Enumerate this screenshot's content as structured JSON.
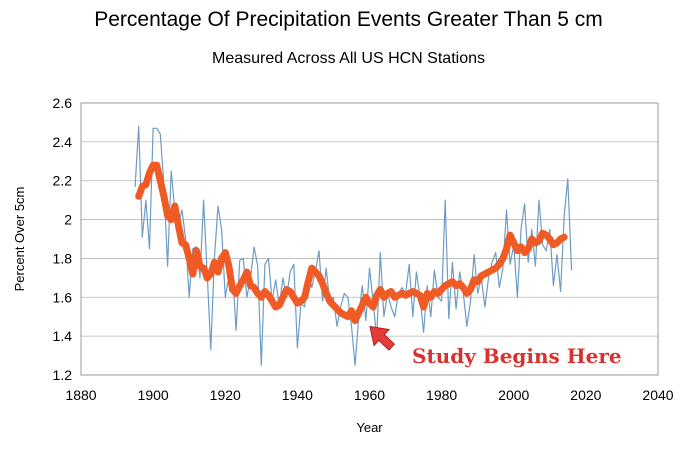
{
  "chart_data": {
    "type": "line",
    "title": "Percentage Of Precipitation Events Greater Than 5 cm",
    "subtitle": "Measured Across All US HCN Stations",
    "xlabel": "Year",
    "ylabel": "Percent Over 5cm",
    "xlim": [
      1880,
      2040
    ],
    "ylim": [
      1.2,
      2.6
    ],
    "xticks": [
      "1880",
      "1900",
      "1920",
      "1940",
      "1960",
      "1980",
      "2000",
      "2020",
      "2040"
    ],
    "yticks": [
      "1.2",
      "1.4",
      "1.6",
      "1.8",
      "2",
      "2.2",
      "2.4",
      "2.6"
    ],
    "grid": "horizontal",
    "series": [
      {
        "color": "#6e9cc4",
        "style": "thin",
        "x": [
          1895,
          1896,
          1897,
          1898,
          1899,
          1900,
          1901,
          1902,
          1903,
          1904,
          1905,
          1906,
          1907,
          1908,
          1909,
          1910,
          1911,
          1912,
          1913,
          1914,
          1915,
          1916,
          1917,
          1918,
          1919,
          1920,
          1921,
          1922,
          1923,
          1924,
          1925,
          1926,
          1927,
          1928,
          1929,
          1930,
          1931,
          1932,
          1933,
          1934,
          1935,
          1936,
          1937,
          1938,
          1939,
          1940,
          1941,
          1942,
          1943,
          1944,
          1945,
          1946,
          1947,
          1948,
          1949,
          1950,
          1951,
          1952,
          1953,
          1954,
          1955,
          1956,
          1957,
          1958,
          1959,
          1960,
          1961,
          1962,
          1963,
          1964,
          1965,
          1966,
          1967,
          1968,
          1969,
          1970,
          1971,
          1972,
          1973,
          1974,
          1975,
          1976,
          1977,
          1978,
          1979,
          1980,
          1981,
          1982,
          1983,
          1984,
          1985,
          1986,
          1987,
          1988,
          1989,
          1990,
          1991,
          1992,
          1993,
          1994,
          1995,
          1996,
          1997,
          1998,
          1999,
          2000,
          2001,
          2002,
          2003,
          2004,
          2005,
          2006,
          2007,
          2008,
          2009,
          2010,
          2011,
          2012,
          2013,
          2014,
          2015,
          2016
        ],
        "values": [
          2.17,
          2.48,
          1.91,
          2.1,
          1.85,
          2.47,
          2.47,
          2.44,
          2.18,
          1.76,
          2.25,
          2.05,
          1.97,
          2.05,
          1.9,
          1.6,
          1.85,
          1.86,
          1.7,
          2.1,
          1.72,
          1.33,
          1.8,
          2.07,
          1.95,
          1.6,
          1.71,
          1.73,
          1.43,
          1.79,
          1.8,
          1.6,
          1.7,
          1.86,
          1.76,
          1.25,
          1.77,
          1.8,
          1.58,
          1.69,
          1.55,
          1.7,
          1.6,
          1.73,
          1.77,
          1.34,
          1.57,
          1.55,
          1.74,
          1.65,
          1.73,
          1.84,
          1.58,
          1.75,
          1.57,
          1.6,
          1.45,
          1.55,
          1.62,
          1.6,
          1.45,
          1.25,
          1.5,
          1.66,
          1.48,
          1.75,
          1.58,
          1.39,
          1.83,
          1.5,
          1.62,
          1.55,
          1.5,
          1.62,
          1.65,
          1.62,
          1.77,
          1.5,
          1.73,
          1.6,
          1.42,
          1.66,
          1.5,
          1.74,
          1.6,
          1.58,
          2.1,
          1.49,
          1.78,
          1.54,
          1.73,
          1.62,
          1.45,
          1.58,
          1.82,
          1.62,
          1.7,
          1.55,
          1.7,
          1.78,
          1.83,
          1.65,
          1.75,
          2.05,
          1.77,
          1.87,
          1.6,
          1.95,
          2.08,
          1.78,
          1.95,
          1.76,
          2.1,
          1.87,
          1.84,
          1.95,
          1.66,
          1.82,
          1.63,
          2.02,
          2.21,
          1.74
        ]
      },
      {
        "color": "#f05a24",
        "style": "thick",
        "x": [
          1896,
          1897,
          1898,
          1899,
          1900,
          1901,
          1902,
          1903,
          1904,
          1905,
          1906,
          1907,
          1908,
          1909,
          1910,
          1911,
          1912,
          1913,
          1914,
          1915,
          1916,
          1917,
          1918,
          1919,
          1920,
          1921,
          1922,
          1923,
          1924,
          1925,
          1926,
          1927,
          1928,
          1929,
          1930,
          1931,
          1932,
          1933,
          1934,
          1935,
          1936,
          1937,
          1938,
          1939,
          1940,
          1941,
          1942,
          1943,
          1944,
          1945,
          1946,
          1947,
          1948,
          1949,
          1950,
          1951,
          1952,
          1953,
          1954,
          1955,
          1956,
          1957,
          1958,
          1959,
          1960,
          1961,
          1962,
          1963,
          1964,
          1965,
          1966,
          1967,
          1968,
          1969,
          1970,
          1971,
          1972,
          1973,
          1974,
          1975,
          1976,
          1977,
          1978,
          1979,
          1980,
          1981,
          1982,
          1983,
          1984,
          1985,
          1986,
          1987,
          1988,
          1989,
          1990,
          1991,
          1992,
          1993,
          1994,
          1995,
          1996,
          1997,
          1998,
          1999,
          2000,
          2001,
          2002,
          2003,
          2004,
          2005,
          2006,
          2007,
          2008,
          2009,
          2010,
          2011,
          2012,
          2013,
          2014
        ],
        "values": [
          2.12,
          2.17,
          2.18,
          2.24,
          2.28,
          2.28,
          2.2,
          2.12,
          2.02,
          2.0,
          2.07,
          1.97,
          1.88,
          1.87,
          1.8,
          1.72,
          1.84,
          1.76,
          1.75,
          1.7,
          1.72,
          1.78,
          1.73,
          1.8,
          1.83,
          1.76,
          1.64,
          1.62,
          1.66,
          1.69,
          1.73,
          1.66,
          1.65,
          1.62,
          1.6,
          1.63,
          1.61,
          1.58,
          1.55,
          1.56,
          1.6,
          1.64,
          1.63,
          1.6,
          1.57,
          1.58,
          1.6,
          1.68,
          1.75,
          1.73,
          1.71,
          1.67,
          1.62,
          1.58,
          1.56,
          1.54,
          1.52,
          1.51,
          1.5,
          1.53,
          1.48,
          1.52,
          1.56,
          1.6,
          1.57,
          1.55,
          1.61,
          1.64,
          1.6,
          1.62,
          1.63,
          1.6,
          1.61,
          1.62,
          1.61,
          1.62,
          1.63,
          1.62,
          1.61,
          1.55,
          1.62,
          1.6,
          1.63,
          1.62,
          1.64,
          1.66,
          1.67,
          1.68,
          1.66,
          1.67,
          1.65,
          1.62,
          1.64,
          1.69,
          1.68,
          1.71,
          1.72,
          1.73,
          1.74,
          1.75,
          1.77,
          1.8,
          1.85,
          1.92,
          1.88,
          1.84,
          1.86,
          1.83,
          1.85,
          1.9,
          1.88,
          1.89,
          1.93,
          1.92,
          1.9,
          1.87,
          1.88,
          1.9,
          1.91
        ]
      }
    ],
    "annotation": {
      "text": "Study Begins Here",
      "color": "#d9322e",
      "arrow_color": "#e63a3a",
      "points_to_year": 1959,
      "points_to_value": 1.47
    }
  }
}
